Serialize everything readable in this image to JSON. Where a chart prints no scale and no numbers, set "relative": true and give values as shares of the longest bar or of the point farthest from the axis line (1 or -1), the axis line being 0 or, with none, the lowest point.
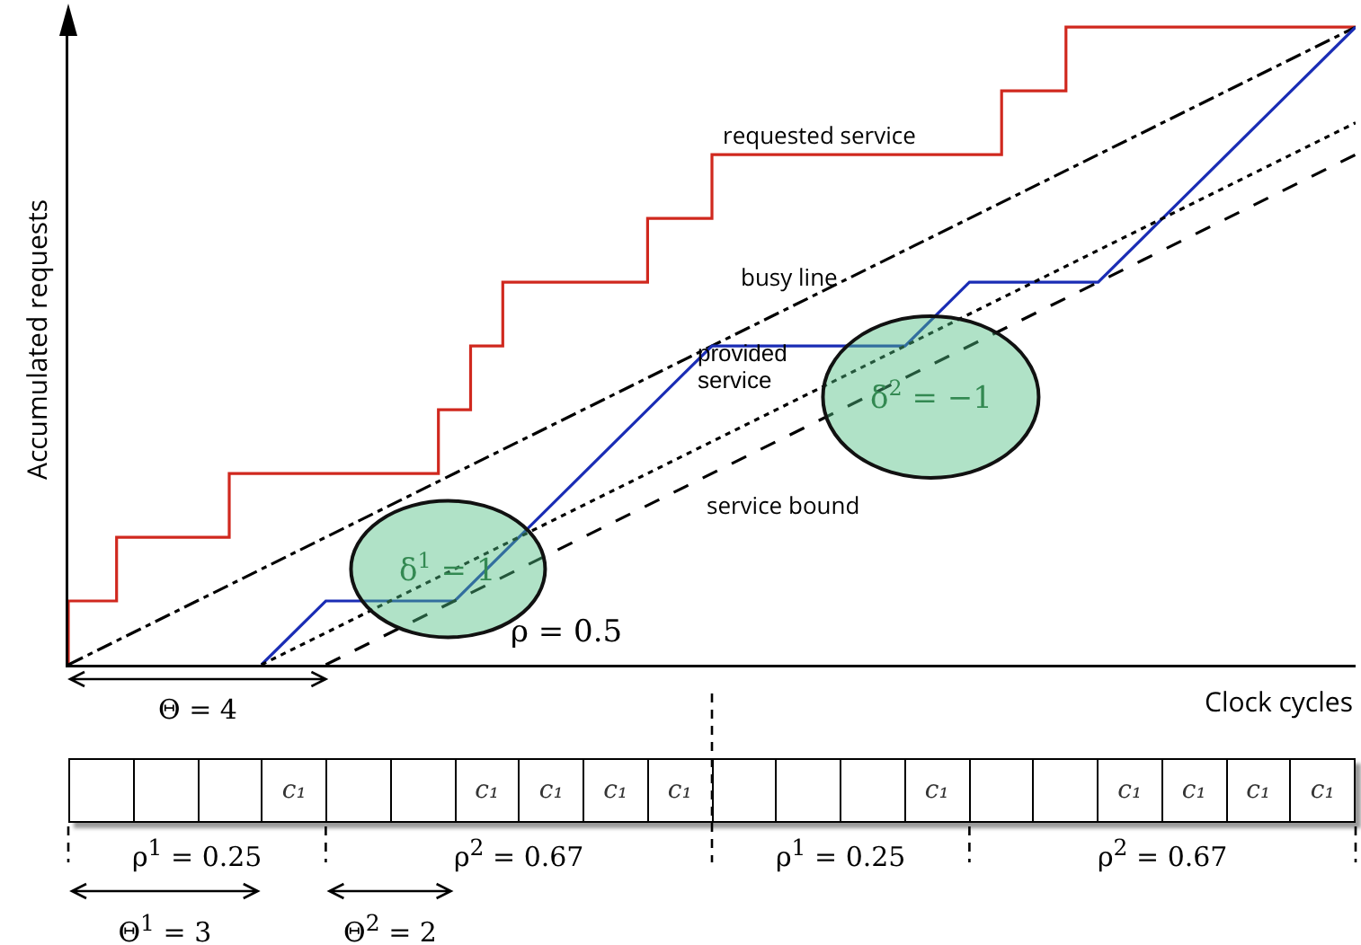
{
  "chart_data": [
    {
      "type": "line",
      "relative": true,
      "xlabel": "Clock cycles",
      "ylabel": "Accumulated requests",
      "legend": false,
      "categories": [
        null,
        null,
        null,
        null,
        null,
        null,
        null,
        null,
        null,
        null,
        null,
        null,
        null,
        null,
        null,
        null,
        null,
        null,
        null,
        null,
        null,
        null,
        null,
        null,
        null,
        null,
        null,
        null,
        null,
        null,
        null,
        null,
        null,
        null,
        null,
        null,
        null,
        null,
        null,
        null,
        null,
        null,
        null,
        null,
        null,
        null,
        null,
        null,
        null,
        null,
        null,
        null,
        null,
        null,
        null,
        null,
        null,
        null,
        null,
        null,
        null,
        null,
        null,
        null,
        null,
        null,
        null,
        null,
        null,
        null,
        null,
        null,
        null,
        null,
        null,
        null,
        null,
        null,
        null,
        null,
        null
      ],
      "series": [
        {
          "name": "requested service",
          "type": "step",
          "color": "#d0281e",
          "line_style": "solid",
          "values": [
            0,
            null,
            null,
            0.1,
            null,
            null,
            null,
            null,
            null,
            null,
            0.2,
            null,
            null,
            null,
            null,
            null,
            null,
            null,
            null,
            null,
            null,
            null,
            null,
            0.3,
            null,
            0.4,
            null,
            0.5,
            null,
            null,
            null,
            null,
            null,
            null,
            null,
            null,
            0.6,
            null,
            null,
            null,
            0.7,
            null,
            null,
            null,
            null,
            null,
            null,
            null,
            null,
            null,
            null,
            null,
            null,
            null,
            null,
            null,
            null,
            null,
            0.8,
            null,
            null,
            null,
            0.9,
            null,
            null,
            null,
            null,
            null,
            null,
            null,
            null,
            null,
            null,
            null,
            null,
            null,
            null,
            null,
            null,
            null,
            1
          ]
        },
        {
          "name": "busy line",
          "color": "#000000",
          "line_style": "dashdot",
          "values": [
            0,
            null,
            null,
            null,
            null,
            null,
            null,
            null,
            null,
            null,
            null,
            null,
            null,
            null,
            null,
            null,
            null,
            null,
            null,
            null,
            null,
            null,
            null,
            null,
            null,
            null,
            null,
            null,
            null,
            null,
            null,
            null,
            null,
            null,
            null,
            null,
            null,
            null,
            null,
            null,
            null,
            null,
            null,
            null,
            null,
            null,
            null,
            null,
            null,
            null,
            null,
            null,
            null,
            null,
            null,
            null,
            null,
            null,
            null,
            null,
            null,
            null,
            null,
            null,
            null,
            null,
            null,
            null,
            null,
            null,
            null,
            null,
            null,
            null,
            null,
            null,
            null,
            null,
            null,
            null,
            1
          ]
        },
        {
          "name": "provided service",
          "color": "#1a2db5",
          "line_style": "solid",
          "values": [
            null,
            null,
            null,
            null,
            null,
            null,
            null,
            null,
            null,
            null,
            null,
            null,
            0,
            null,
            null,
            null,
            0.1,
            null,
            null,
            null,
            null,
            null,
            null,
            null,
            0.1,
            null,
            null,
            null,
            null,
            null,
            null,
            null,
            null,
            null,
            null,
            null,
            null,
            null,
            null,
            null,
            0.5,
            null,
            null,
            null,
            null,
            null,
            null,
            null,
            null,
            null,
            null,
            null,
            0.5,
            null,
            null,
            null,
            0.6,
            null,
            null,
            null,
            null,
            null,
            null,
            null,
            0.6,
            null,
            null,
            null,
            null,
            null,
            null,
            null,
            null,
            null,
            null,
            null,
            null,
            null,
            null,
            null,
            1
          ]
        },
        {
          "color": "#000000",
          "line_style": "dotted",
          "values": [
            null,
            null,
            null,
            null,
            null,
            null,
            null,
            null,
            null,
            null,
            null,
            null,
            0,
            null,
            null,
            null,
            null,
            null,
            null,
            null,
            null,
            null,
            null,
            null,
            null,
            null,
            null,
            null,
            null,
            null,
            null,
            null,
            null,
            null,
            null,
            null,
            null,
            null,
            null,
            null,
            null,
            null,
            null,
            null,
            null,
            null,
            null,
            null,
            null,
            null,
            null,
            null,
            null,
            null,
            null,
            null,
            null,
            null,
            null,
            null,
            null,
            null,
            null,
            null,
            null,
            null,
            null,
            null,
            null,
            null,
            null,
            null,
            null,
            null,
            null,
            null,
            null,
            null,
            null,
            null,
            0.85
          ]
        },
        {
          "name": "service bound",
          "color": "#000000",
          "line_style": "dashed",
          "values": [
            null,
            null,
            null,
            null,
            null,
            null,
            null,
            null,
            null,
            null,
            null,
            null,
            null,
            null,
            null,
            null,
            0,
            null,
            null,
            null,
            null,
            null,
            null,
            null,
            null,
            null,
            null,
            null,
            null,
            null,
            null,
            null,
            null,
            null,
            null,
            null,
            null,
            null,
            null,
            null,
            null,
            null,
            null,
            null,
            null,
            null,
            null,
            null,
            null,
            null,
            null,
            null,
            null,
            null,
            null,
            null,
            null,
            null,
            null,
            null,
            null,
            null,
            null,
            null,
            null,
            null,
            null,
            null,
            null,
            null,
            null,
            null,
            null,
            null,
            null,
            null,
            null,
            null,
            null,
            null,
            0.8
          ]
        }
      ],
      "annotations": [
        "δ$^{1}$ = 1",
        "δ$^{2}$ = −1",
        "ρ = 0.5",
        "Θ = 4"
      ]
    },
    {
      "type": "other",
      "categories": [
        null,
        null,
        null,
        null,
        null,
        null,
        null,
        null,
        null,
        null,
        null,
        null,
        null,
        null,
        null,
        null,
        null,
        null,
        null,
        null
      ],
      "cell_labels": [
        [
          null,
          null,
          null,
          "c₁",
          null,
          null,
          "c₁",
          "c₁",
          "c₁",
          "c₁",
          null,
          null,
          null,
          "c₁",
          null,
          null,
          "c₁",
          "c₁",
          "c₁",
          "c₁"
        ]
      ],
      "annotations": [
        "ρ$^{1}$ = 0.25",
        "ρ$^{2}$ = 0.67",
        "ρ$^{1}$ = 0.25",
        "ρ$^{2}$ = 0.67",
        "Θ$^{1}$ = 3",
        "Θ$^{2}$ = 2"
      ]
    }
  ]
}
